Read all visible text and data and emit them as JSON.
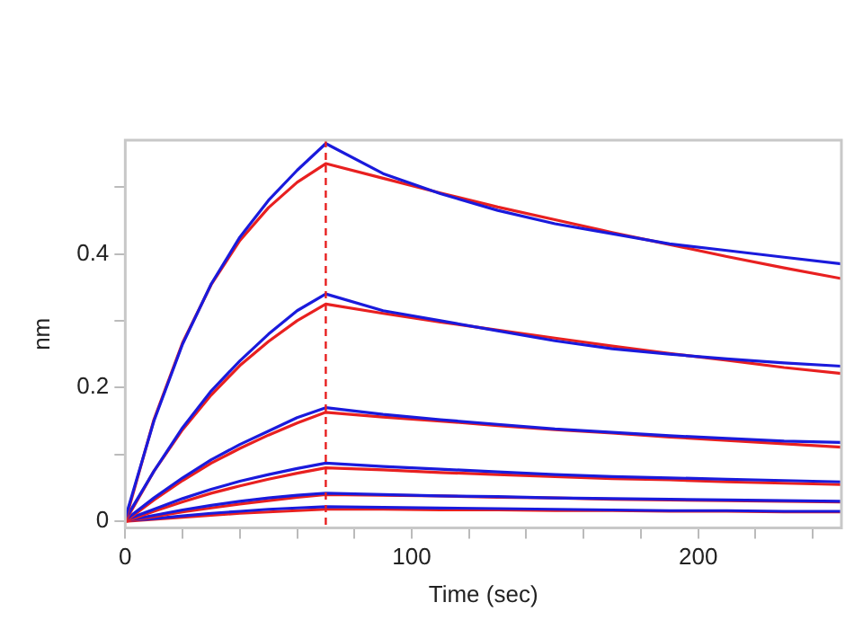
{
  "chart_data": {
    "type": "line",
    "xlabel": "Time (sec)",
    "ylabel": "nm",
    "x": [
      0,
      10,
      20,
      30,
      40,
      50,
      60,
      70,
      90,
      110,
      130,
      150,
      170,
      190,
      210,
      230,
      250
    ],
    "xlim": [
      0,
      250
    ],
    "xticks": [
      0,
      {
        "value": 20,
        "label": null
      },
      {
        "value": 40,
        "label": null
      },
      {
        "value": 60,
        "label": null
      },
      {
        "value": 80,
        "label": null
      },
      100,
      {
        "value": 120,
        "label": null
      },
      {
        "value": 140,
        "label": null
      },
      {
        "value": 160,
        "label": null
      },
      {
        "value": 180,
        "label": null
      },
      200,
      {
        "value": 220,
        "label": null
      },
      {
        "value": 240,
        "label": null
      }
    ],
    "ylim": [
      -0.01,
      0.57
    ],
    "yticks": [
      0,
      {
        "value": 0.1,
        "label": null
      },
      0.2,
      {
        "value": 0.3,
        "label": null
      },
      0.4,
      {
        "value": 0.5,
        "label": null
      }
    ],
    "grid": false,
    "legend": false,
    "marker": "none",
    "line_style": "solid",
    "series": [
      {
        "color": "#1a1adc",
        "values": [
          0.005,
          0.15,
          0.265,
          0.355,
          0.425,
          0.48,
          0.525,
          0.565,
          0.52,
          0.49,
          0.465,
          0.445,
          0.43,
          0.415,
          0.405,
          0.395,
          0.385
        ]
      },
      {
        "color": "#e82020",
        "values": [
          0,
          0.152,
          0.267,
          0.354,
          0.42,
          0.469,
          0.507,
          0.535,
          0.513,
          0.491,
          0.47,
          0.451,
          0.432,
          0.414,
          0.396,
          0.379,
          0.363
        ]
      },
      {
        "color": "#1a1adc",
        "values": [
          0.003,
          0.075,
          0.14,
          0.195,
          0.24,
          0.28,
          0.315,
          0.34,
          0.315,
          0.3,
          0.285,
          0.27,
          0.258,
          0.25,
          0.243,
          0.237,
          0.232
        ]
      },
      {
        "color": "#e82020",
        "values": [
          0,
          0.075,
          0.137,
          0.189,
          0.233,
          0.269,
          0.3,
          0.325,
          0.311,
          0.298,
          0.286,
          0.274,
          0.262,
          0.251,
          0.241,
          0.23,
          0.221
        ]
      },
      {
        "color": "#1a1adc",
        "values": [
          0.002,
          0.035,
          0.065,
          0.092,
          0.115,
          0.135,
          0.155,
          0.17,
          0.16,
          0.152,
          0.145,
          0.138,
          0.133,
          0.128,
          0.124,
          0.12,
          0.118
        ]
      },
      {
        "color": "#e82020",
        "values": [
          0,
          0.032,
          0.061,
          0.087,
          0.109,
          0.129,
          0.147,
          0.163,
          0.156,
          0.15,
          0.143,
          0.137,
          0.132,
          0.126,
          0.121,
          0.116,
          0.111
        ]
      },
      {
        "color": "#1a1adc",
        "values": [
          0.002,
          0.018,
          0.034,
          0.048,
          0.06,
          0.07,
          0.079,
          0.087,
          0.082,
          0.078,
          0.074,
          0.07,
          0.067,
          0.065,
          0.063,
          0.061,
          0.059
        ]
      },
      {
        "color": "#e82020",
        "values": [
          0,
          0.015,
          0.029,
          0.042,
          0.053,
          0.063,
          0.072,
          0.08,
          0.077,
          0.073,
          0.07,
          0.067,
          0.064,
          0.062,
          0.059,
          0.057,
          0.055
        ]
      },
      {
        "color": "#1a1adc",
        "values": [
          0.001,
          0.009,
          0.017,
          0.024,
          0.03,
          0.035,
          0.039,
          0.042,
          0.04,
          0.038,
          0.037,
          0.035,
          0.034,
          0.033,
          0.032,
          0.031,
          0.03
        ]
      },
      {
        "color": "#e82020",
        "values": [
          0,
          0.007,
          0.014,
          0.02,
          0.026,
          0.031,
          0.036,
          0.04,
          0.039,
          0.038,
          0.036,
          0.035,
          0.033,
          0.032,
          0.031,
          0.03,
          0.029
        ]
      },
      {
        "color": "#1a1adc",
        "values": [
          0.001,
          0.004,
          0.008,
          0.012,
          0.015,
          0.018,
          0.02,
          0.022,
          0.021,
          0.02,
          0.019,
          0.018,
          0.017,
          0.016,
          0.016,
          0.015,
          0.015
        ]
      },
      {
        "color": "#e82020",
        "values": [
          0,
          0.003,
          0.006,
          0.009,
          0.012,
          0.014,
          0.016,
          0.018,
          0.018,
          0.017,
          0.017,
          0.016,
          0.016,
          0.015,
          0.015,
          0.014,
          0.014
        ]
      }
    ],
    "ref_lines": [
      {
        "axis": "x",
        "value": 70,
        "color": "#e82020",
        "line_style": "dashed"
      }
    ]
  }
}
